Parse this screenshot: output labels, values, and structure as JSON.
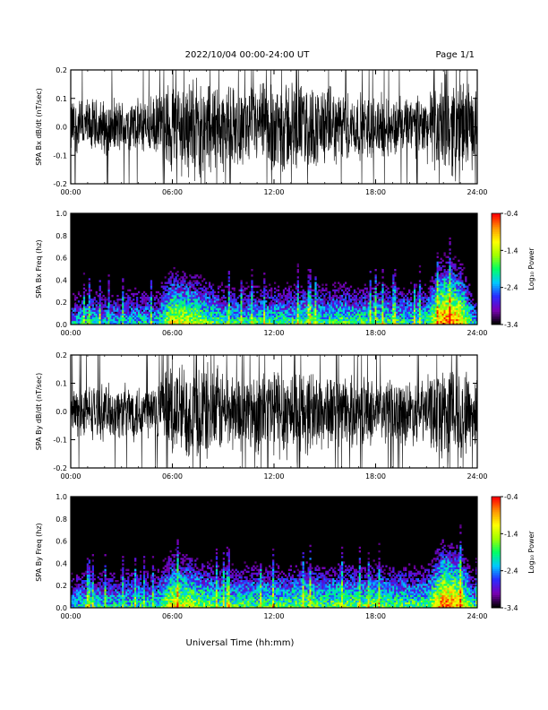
{
  "header": {
    "date_range": "2022/10/04  00:00-24:00 UT",
    "page": "Page 1/1"
  },
  "footer": {
    "xlabel": "Universal Time (hh:mm)"
  },
  "colors": {
    "background": "#000000",
    "trace": "#ffffff",
    "frame": "#000000",
    "colormap": [
      "#000000",
      "#7a00b4",
      "#2a2aff",
      "#00c8ff",
      "#00ff64",
      "#a0ff00",
      "#ffff00",
      "#ff9600",
      "#ff0000"
    ]
  },
  "chart_data": [
    {
      "type": "line",
      "ylabel": "SPA Bx dB/dt (nT/sec)",
      "xlim": [
        0,
        24
      ],
      "ylim": [
        -0.2,
        0.2
      ],
      "xticks": [
        "00:00",
        "06:00",
        "12:00",
        "18:00",
        "24:00"
      ],
      "yticks": [
        "-0.2",
        "-0.1",
        "0.0",
        "0.1",
        "0.2"
      ],
      "envelope": {
        "hours": [
          0,
          1,
          2,
          3,
          4,
          5,
          6,
          7,
          8,
          9,
          10,
          11,
          12,
          13,
          14,
          15,
          16,
          17,
          18,
          19,
          20,
          21,
          22,
          23,
          24
        ],
        "amplitude_nT_per_sec": [
          0.12,
          0.11,
          0.11,
          0.11,
          0.11,
          0.12,
          0.2,
          0.2,
          0.2,
          0.17,
          0.15,
          0.16,
          0.2,
          0.19,
          0.17,
          0.16,
          0.14,
          0.13,
          0.13,
          0.12,
          0.12,
          0.13,
          0.2,
          0.2,
          0.14
        ]
      }
    },
    {
      "type": "heatmap",
      "ylabel": "SPA Bx Freq (hz)",
      "colorbar_label": "Log₁₀ Power",
      "xlim": [
        0,
        24
      ],
      "ylim": [
        0,
        1.0
      ],
      "clim": [
        -3.4,
        -0.4
      ],
      "xticks": [
        "00:00",
        "06:00",
        "12:00",
        "18:00",
        "24:00"
      ],
      "yticks": [
        "0.0",
        "0.2",
        "0.4",
        "0.6",
        "0.8",
        "1.0"
      ],
      "cticks": [
        "-3.4",
        "-2.4",
        "-1.4",
        "-0.4"
      ],
      "activity": {
        "hours": [
          0,
          1,
          2,
          3,
          4,
          5,
          6,
          7,
          8,
          9,
          10,
          11,
          12,
          13,
          14,
          15,
          16,
          17,
          18,
          19,
          20,
          21,
          22,
          23,
          24
        ],
        "level": [
          0.35,
          0.45,
          0.4,
          0.4,
          0.45,
          0.4,
          0.75,
          0.7,
          0.6,
          0.5,
          0.5,
          0.5,
          0.5,
          0.5,
          0.55,
          0.5,
          0.55,
          0.5,
          0.55,
          0.5,
          0.5,
          0.5,
          0.95,
          0.85,
          0.3
        ]
      }
    },
    {
      "type": "line",
      "ylabel": "SPA By dB/dt (nT/sec)",
      "xlim": [
        0,
        24
      ],
      "ylim": [
        -0.2,
        0.2
      ],
      "xticks": [
        "00:00",
        "06:00",
        "12:00",
        "18:00",
        "24:00"
      ],
      "yticks": [
        "-0.2",
        "-0.1",
        "0.0",
        "0.1",
        "0.2"
      ],
      "envelope": {
        "hours": [
          0,
          1,
          2,
          3,
          4,
          5,
          6,
          7,
          8,
          9,
          10,
          11,
          12,
          13,
          14,
          15,
          16,
          17,
          18,
          19,
          20,
          21,
          22,
          23,
          24
        ],
        "amplitude_nT_per_sec": [
          0.1,
          0.11,
          0.11,
          0.11,
          0.12,
          0.12,
          0.2,
          0.2,
          0.2,
          0.17,
          0.15,
          0.17,
          0.2,
          0.19,
          0.17,
          0.16,
          0.14,
          0.14,
          0.13,
          0.13,
          0.13,
          0.13,
          0.2,
          0.2,
          0.14
        ]
      }
    },
    {
      "type": "heatmap",
      "ylabel": "SPA By Freq (hz)",
      "colorbar_label": "Log₁₀ Power",
      "xlim": [
        0,
        24
      ],
      "ylim": [
        0,
        1.0
      ],
      "clim": [
        -3.4,
        -0.4
      ],
      "xticks": [
        "00:00",
        "06:00",
        "12:00",
        "18:00",
        "24:00"
      ],
      "yticks": [
        "0.0",
        "0.2",
        "0.4",
        "0.6",
        "0.8",
        "1.0"
      ],
      "cticks": [
        "-3.4",
        "-2.4",
        "-1.4",
        "-0.4"
      ],
      "activity": {
        "hours": [
          0,
          1,
          2,
          3,
          4,
          5,
          6,
          7,
          8,
          9,
          10,
          11,
          12,
          13,
          14,
          15,
          16,
          17,
          18,
          19,
          20,
          21,
          22,
          23,
          24
        ],
        "level": [
          0.4,
          0.5,
          0.45,
          0.45,
          0.5,
          0.45,
          0.75,
          0.7,
          0.6,
          0.55,
          0.55,
          0.55,
          0.55,
          0.55,
          0.6,
          0.55,
          0.6,
          0.55,
          0.6,
          0.55,
          0.55,
          0.55,
          0.95,
          0.85,
          0.35
        ]
      }
    }
  ]
}
